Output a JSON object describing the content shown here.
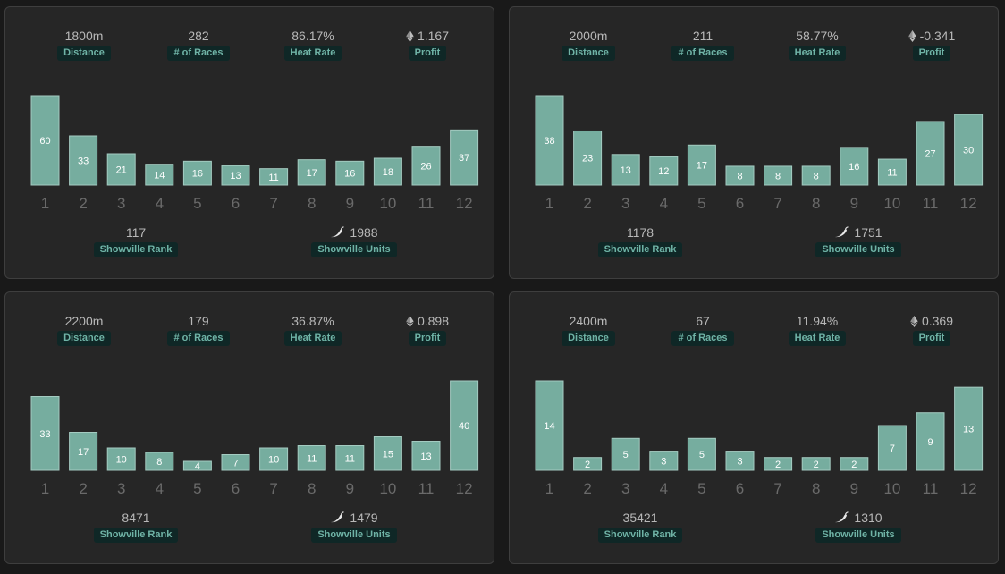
{
  "colors": {
    "background": "#191919",
    "card": "#262626",
    "bar": "#76ad9f",
    "badge_bg": "#0f2726",
    "badge_text": "#6fb3a6"
  },
  "labels": {
    "distance": "Distance",
    "races": "# of Races",
    "heat_rate": "Heat Rate",
    "profit": "Profit",
    "rank": "Showville Rank",
    "units": "Showville Units"
  },
  "icons": {
    "profit": "ethereum-icon",
    "units": "pepper-icon"
  },
  "cards": [
    {
      "distance": "1800m",
      "races": "282",
      "heat_rate": "86.17%",
      "profit": "1.167",
      "rank": "117",
      "units": "1988",
      "chart_data": {
        "type": "bar",
        "categories": [
          "1",
          "2",
          "3",
          "4",
          "5",
          "6",
          "7",
          "8",
          "9",
          "10",
          "11",
          "12"
        ],
        "values": [
          60,
          33,
          21,
          14,
          16,
          13,
          11,
          17,
          16,
          18,
          26,
          37
        ]
      }
    },
    {
      "distance": "2000m",
      "races": "211",
      "heat_rate": "58.77%",
      "profit": "-0.341",
      "rank": "1178",
      "units": "1751",
      "chart_data": {
        "type": "bar",
        "categories": [
          "1",
          "2",
          "3",
          "4",
          "5",
          "6",
          "7",
          "8",
          "9",
          "10",
          "11",
          "12"
        ],
        "values": [
          38,
          23,
          13,
          12,
          17,
          8,
          8,
          8,
          16,
          11,
          27,
          30
        ]
      }
    },
    {
      "distance": "2200m",
      "races": "179",
      "heat_rate": "36.87%",
      "profit": "0.898",
      "rank": "8471",
      "units": "1479",
      "chart_data": {
        "type": "bar",
        "categories": [
          "1",
          "2",
          "3",
          "4",
          "5",
          "6",
          "7",
          "8",
          "9",
          "10",
          "11",
          "12"
        ],
        "values": [
          33,
          17,
          10,
          8,
          4,
          7,
          10,
          11,
          11,
          15,
          13,
          40
        ]
      }
    },
    {
      "distance": "2400m",
      "races": "67",
      "heat_rate": "11.94%",
      "profit": "0.369",
      "rank": "35421",
      "units": "1310",
      "chart_data": {
        "type": "bar",
        "categories": [
          "1",
          "2",
          "3",
          "4",
          "5",
          "6",
          "7",
          "8",
          "9",
          "10",
          "11",
          "12"
        ],
        "values": [
          14,
          2,
          5,
          3,
          5,
          3,
          2,
          2,
          2,
          7,
          9,
          13
        ]
      }
    }
  ]
}
